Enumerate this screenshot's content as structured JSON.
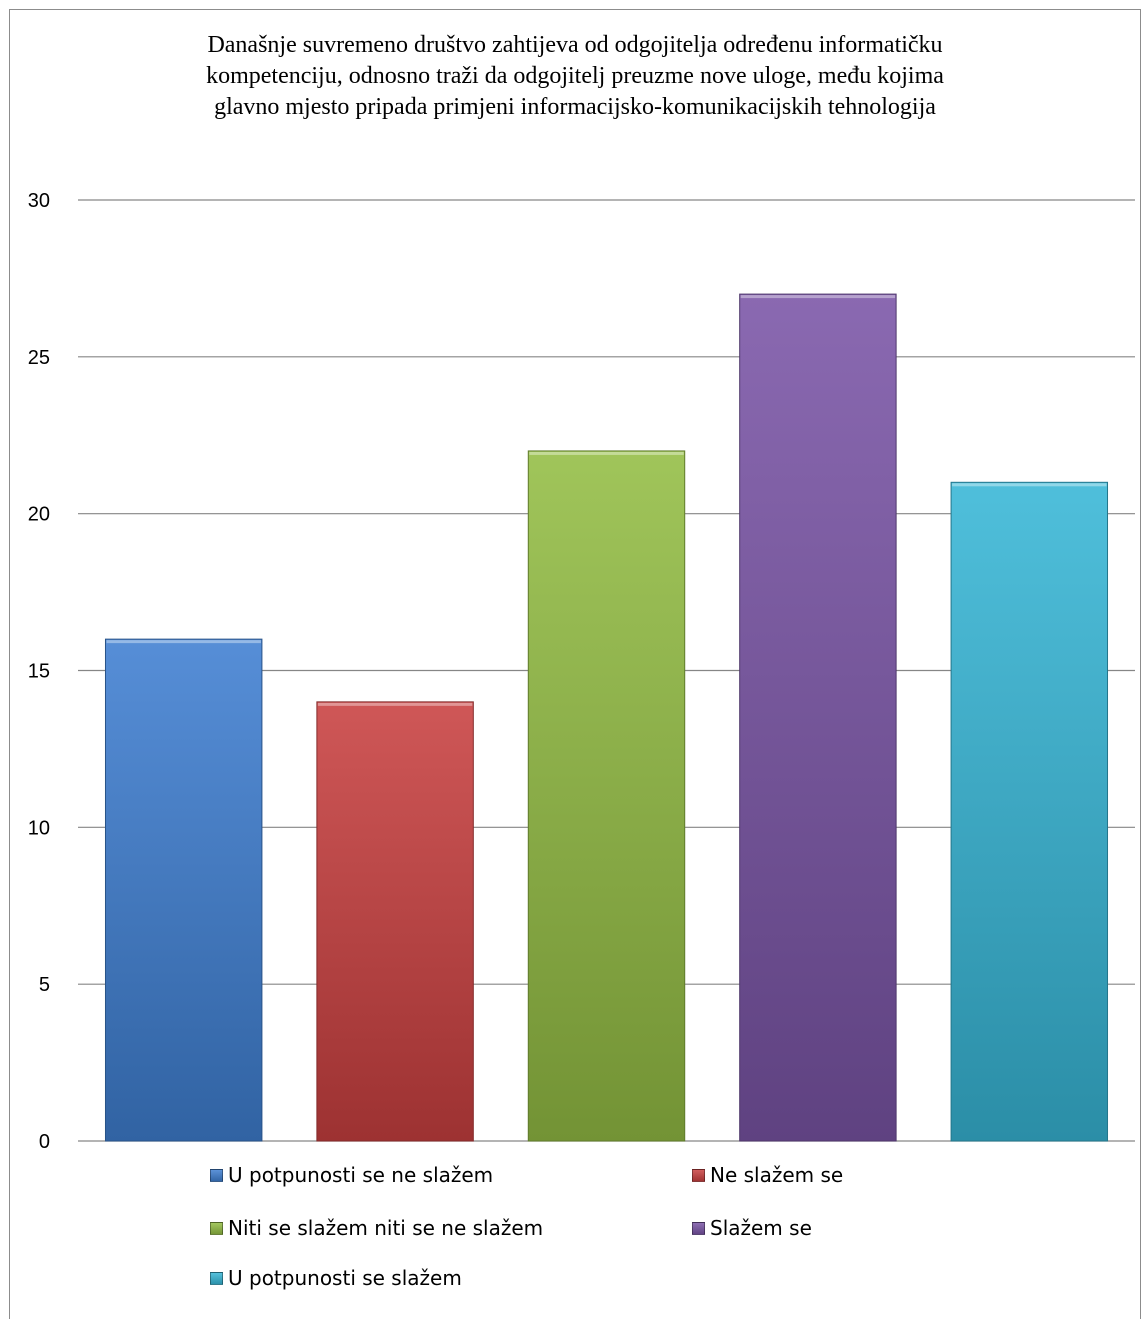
{
  "chart_data": {
    "type": "bar",
    "title_lines": [
      "Današnje suvremeno društvo zahtijeva od odgojitelja određenu informatičku",
      "kompetenciju, odnosno traži da odgojitelj preuzme nove uloge, među kojima",
      "glavno mjesto pripada primjeni informacijsko-komunikacijskih tehnologija"
    ],
    "series": [
      {
        "name": "U potpunosti se ne slažem",
        "value": 16,
        "color": "#3f7fd1"
      },
      {
        "name": "Ne slažem se",
        "value": 14,
        "color": "#c94040"
      },
      {
        "name": "Niti se slažem niti se ne slažem",
        "value": 22,
        "color": "#93bd44"
      },
      {
        "name": "Slažem se",
        "value": 27,
        "color": "#7a55a6"
      },
      {
        "name": "U potpunosti se slažem",
        "value": 21,
        "color": "#37b6d6"
      }
    ],
    "yticks": [
      "0",
      "5",
      "10",
      "15",
      "20",
      "25",
      "30"
    ],
    "ylim": [
      0,
      30
    ],
    "grid": true,
    "legend_position": "bottom"
  }
}
